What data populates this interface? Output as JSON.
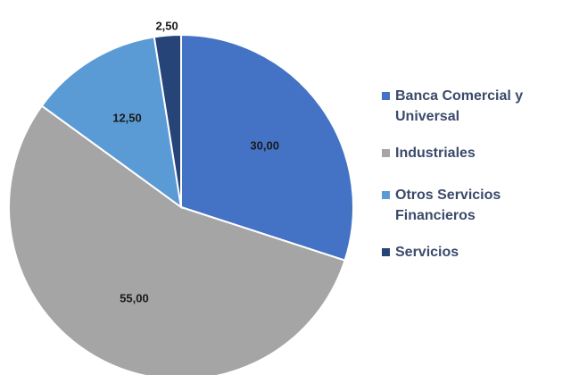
{
  "chart_data": {
    "type": "pie",
    "categories": [
      "Banca Comercial y Universal",
      "Industriales",
      "Otros Servicios Financieros",
      "Servicios"
    ],
    "values": [
      30,
      55,
      12.5,
      2.5
    ],
    "value_labels": [
      "30,00",
      "55,00",
      "12,50",
      "2,50"
    ],
    "colors": [
      "#4472c4",
      "#a5a5a5",
      "#5b9bd5",
      "#264478"
    ],
    "legend": "right"
  }
}
